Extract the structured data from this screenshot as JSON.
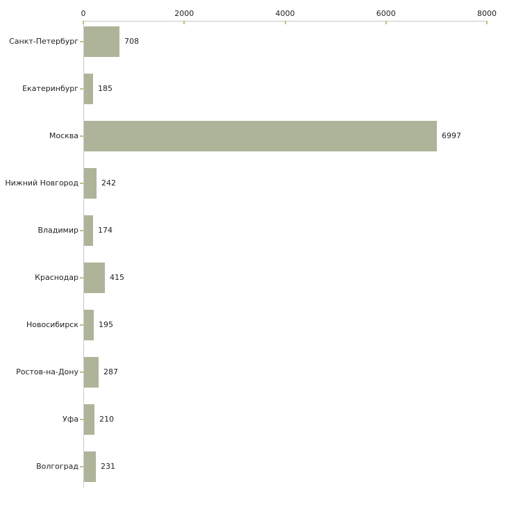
{
  "chart_data": {
    "type": "bar",
    "orientation": "horizontal",
    "title": "",
    "xlabel": "",
    "ylabel": "",
    "axis_position": "top",
    "grid": false,
    "legend": false,
    "categories": [
      "Санкт-Петербург",
      "Екатеринбург",
      "Москва",
      "Нижний Новгород",
      "Владимир",
      "Краснодар",
      "Новосибирск",
      "Ростов-на-Дону",
      "Уфа",
      "Волгоград"
    ],
    "values": [
      708,
      185,
      6997,
      242,
      174,
      415,
      195,
      287,
      210,
      231
    ],
    "value_labels": [
      "708",
      "185",
      "6997",
      "242",
      "174",
      "415",
      "195",
      "287",
      "210",
      "231"
    ],
    "xlim": [
      0,
      8000
    ],
    "x_ticks": [
      0,
      2000,
      4000,
      6000,
      8000
    ],
    "x_tick_labels": [
      "0",
      "2000",
      "4000",
      "6000",
      "8000"
    ],
    "colors": {
      "bar_fill": "#adb499",
      "axis_line": "#c8c8c8",
      "tick_mark": "#c0bc88",
      "label_text": "#1f1f1f",
      "background": "#ffffff"
    }
  }
}
